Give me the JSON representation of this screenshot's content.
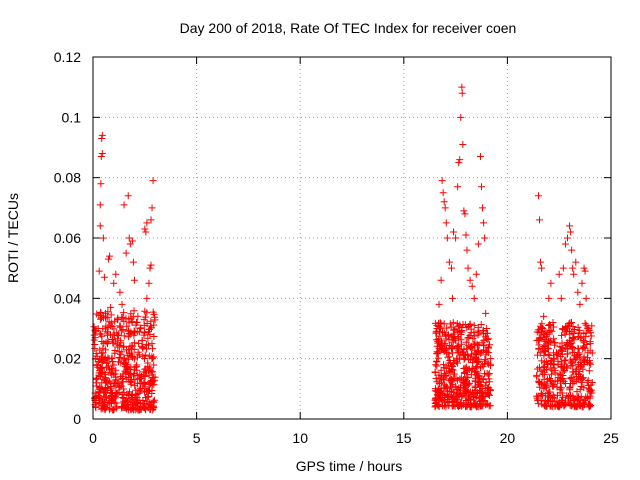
{
  "chart_data": {
    "type": "scatter",
    "title": "Day 200 of 2018, Rate Of TEC Index for receiver coen",
    "xlabel": "GPS time / hours",
    "ylabel": "ROTI / TECUs",
    "xlim": [
      0,
      25
    ],
    "ylim": [
      0,
      0.12
    ],
    "x_ticks": [
      0,
      5,
      10,
      15,
      20,
      25
    ],
    "x_tick_labels": [
      "0",
      "5",
      "10",
      "15",
      "20",
      "25"
    ],
    "y_ticks": [
      0,
      0.02,
      0.04,
      0.06,
      0.08,
      0.1,
      0.12
    ],
    "y_tick_labels": [
      "0",
      "0.02",
      "0.04",
      "0.06",
      "0.08",
      "0.1",
      "0.12"
    ],
    "grid": true,
    "marker": "+",
    "color": "#ff0000",
    "series": [
      {
        "name": "ROTI",
        "points": [
          [
            0.15,
            0.012
          ],
          [
            0.2,
            0.018
          ],
          [
            0.25,
            0.03
          ],
          [
            0.3,
            0.049
          ],
          [
            0.35,
            0.071
          ],
          [
            0.35,
            0.064
          ],
          [
            0.38,
            0.078
          ],
          [
            0.4,
            0.087
          ],
          [
            0.42,
            0.093
          ],
          [
            0.45,
            0.094
          ],
          [
            0.45,
            0.088
          ],
          [
            0.5,
            0.06
          ],
          [
            0.55,
            0.047
          ],
          [
            0.6,
            0.035
          ],
          [
            0.7,
            0.025
          ],
          [
            0.75,
            0.053
          ],
          [
            0.8,
            0.054
          ],
          [
            0.85,
            0.037
          ],
          [
            0.9,
            0.02
          ],
          [
            1.0,
            0.045
          ],
          [
            1.1,
            0.048
          ],
          [
            1.2,
            0.033
          ],
          [
            1.3,
            0.042
          ],
          [
            1.4,
            0.038
          ],
          [
            1.5,
            0.071
          ],
          [
            1.6,
            0.055
          ],
          [
            1.7,
            0.074
          ],
          [
            1.75,
            0.06
          ],
          [
            1.8,
            0.058
          ],
          [
            1.9,
            0.059
          ],
          [
            1.95,
            0.052
          ],
          [
            2.0,
            0.046
          ],
          [
            2.1,
            0.032
          ],
          [
            2.2,
            0.025
          ],
          [
            2.5,
            0.063
          ],
          [
            2.55,
            0.062
          ],
          [
            2.6,
            0.065
          ],
          [
            2.7,
            0.045
          ],
          [
            2.75,
            0.05
          ],
          [
            2.8,
            0.051
          ],
          [
            2.85,
            0.07
          ],
          [
            2.9,
            0.079
          ],
          [
            2.8,
            0.066
          ],
          [
            2.6,
            0.04
          ],
          [
            16.6,
            0.03
          ],
          [
            16.7,
            0.038
          ],
          [
            16.8,
            0.046
          ],
          [
            16.85,
            0.079
          ],
          [
            16.9,
            0.075
          ],
          [
            16.95,
            0.072
          ],
          [
            17.0,
            0.07
          ],
          [
            17.05,
            0.065
          ],
          [
            17.1,
            0.06
          ],
          [
            17.2,
            0.052
          ],
          [
            17.3,
            0.05
          ],
          [
            17.35,
            0.04
          ],
          [
            17.4,
            0.062
          ],
          [
            17.5,
            0.06
          ],
          [
            17.6,
            0.077
          ],
          [
            17.65,
            0.085
          ],
          [
            17.7,
            0.086
          ],
          [
            17.75,
            0.1
          ],
          [
            17.8,
            0.11
          ],
          [
            17.82,
            0.108
          ],
          [
            17.85,
            0.091
          ],
          [
            17.9,
            0.069
          ],
          [
            17.95,
            0.068
          ],
          [
            18.0,
            0.061
          ],
          [
            18.05,
            0.056
          ],
          [
            18.1,
            0.05
          ],
          [
            18.2,
            0.046
          ],
          [
            18.3,
            0.044
          ],
          [
            18.4,
            0.04
          ],
          [
            18.5,
            0.048
          ],
          [
            18.6,
            0.058
          ],
          [
            18.7,
            0.087
          ],
          [
            18.75,
            0.077
          ],
          [
            18.8,
            0.07
          ],
          [
            18.85,
            0.065
          ],
          [
            18.9,
            0.06
          ],
          [
            18.95,
            0.035
          ],
          [
            19.0,
            0.03
          ],
          [
            21.5,
            0.074
          ],
          [
            21.55,
            0.066
          ],
          [
            21.6,
            0.052
          ],
          [
            21.65,
            0.05
          ],
          [
            21.7,
            0.03
          ],
          [
            21.75,
            0.034
          ],
          [
            21.8,
            0.028
          ],
          [
            22.0,
            0.04
          ],
          [
            22.1,
            0.045
          ],
          [
            22.2,
            0.032
          ],
          [
            22.5,
            0.048
          ],
          [
            22.6,
            0.04
          ],
          [
            22.7,
            0.05
          ],
          [
            22.8,
            0.058
          ],
          [
            22.9,
            0.06
          ],
          [
            23.0,
            0.064
          ],
          [
            23.05,
            0.062
          ],
          [
            23.1,
            0.056
          ],
          [
            23.15,
            0.05
          ],
          [
            23.2,
            0.048
          ],
          [
            23.3,
            0.052
          ],
          [
            23.4,
            0.042
          ],
          [
            23.5,
            0.038
          ],
          [
            23.6,
            0.045
          ],
          [
            23.7,
            0.05
          ],
          [
            23.75,
            0.049
          ],
          [
            23.8,
            0.04
          ],
          [
            23.9,
            0.03
          ],
          [
            24.0,
            0.025
          ]
        ],
        "clusters": [
          {
            "x_range": [
              0.05,
              3.0
            ],
            "y_range": [
              0.003,
              0.036
            ],
            "count": 520
          },
          {
            "x_range": [
              16.5,
              19.2
            ],
            "y_range": [
              0.004,
              0.032
            ],
            "count": 520
          },
          {
            "x_range": [
              21.4,
              24.1
            ],
            "y_range": [
              0.004,
              0.032
            ],
            "count": 420
          }
        ]
      }
    ]
  }
}
